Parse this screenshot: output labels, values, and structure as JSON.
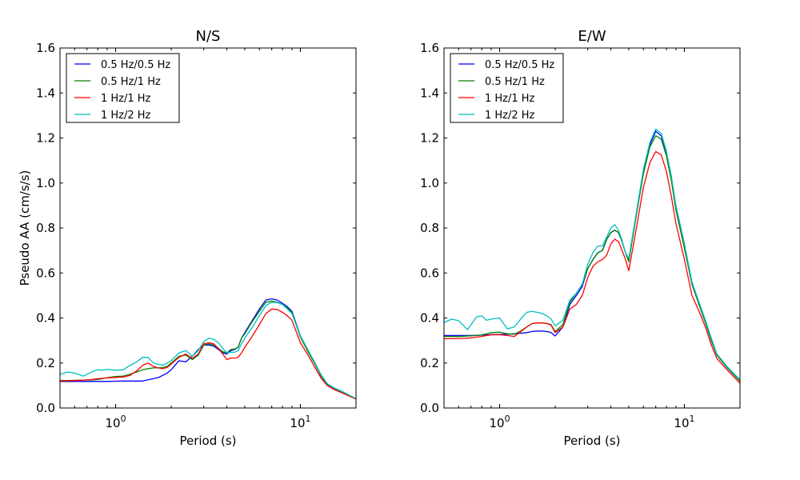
{
  "chart_data": [
    {
      "type": "line",
      "title": "N/S",
      "xlabel": "Period (s)",
      "ylabel": "Pseudo AA (cm/s/s)",
      "xscale": "log",
      "xlim": [
        0.5,
        20
      ],
      "ylim": [
        0.0,
        1.6
      ],
      "yticks": [
        "0.0",
        "0.2",
        "0.4",
        "0.6",
        "0.8",
        "1.0",
        "1.2",
        "1.4",
        "1.6"
      ],
      "xticks": [
        {
          "base": "10",
          "exp": "0",
          "value": 1
        },
        {
          "base": "10",
          "exp": "1",
          "value": 10
        }
      ],
      "legend_position": "upper-left",
      "x": [
        0.5,
        0.55,
        0.6,
        0.67,
        0.75,
        0.8,
        0.85,
        0.9,
        1.0,
        1.1,
        1.2,
        1.3,
        1.4,
        1.5,
        1.6,
        1.7,
        1.8,
        1.9,
        2.0,
        2.2,
        2.4,
        2.6,
        2.8,
        3.0,
        3.2,
        3.4,
        3.6,
        3.8,
        4.0,
        4.2,
        4.4,
        4.6,
        4.8,
        5.0,
        5.5,
        6.0,
        6.5,
        7.0,
        7.5,
        8.0,
        8.5,
        9.0,
        10.0,
        11.0,
        12.0,
        13.0,
        14.0,
        15.0,
        17.0,
        20.0
      ],
      "series": [
        {
          "name": "0.5 Hz/0.5 Hz",
          "color": "#0000ff",
          "values": [
            0.118,
            0.118,
            0.118,
            0.118,
            0.118,
            0.118,
            0.118,
            0.118,
            0.119,
            0.12,
            0.12,
            0.12,
            0.12,
            0.125,
            0.13,
            0.135,
            0.145,
            0.155,
            0.17,
            0.21,
            0.205,
            0.23,
            0.26,
            0.28,
            0.28,
            0.275,
            0.26,
            0.245,
            0.24,
            0.255,
            0.26,
            0.27,
            0.31,
            0.335,
            0.39,
            0.44,
            0.48,
            0.485,
            0.48,
            0.465,
            0.45,
            0.43,
            0.32,
            0.255,
            0.2,
            0.14,
            0.105,
            0.09,
            0.07,
            0.04
          ]
        },
        {
          "name": "0.5 Hz/1 Hz",
          "color": "#008000",
          "values": [
            0.122,
            0.122,
            0.123,
            0.124,
            0.125,
            0.127,
            0.13,
            0.135,
            0.14,
            0.142,
            0.15,
            0.16,
            0.17,
            0.175,
            0.178,
            0.178,
            0.18,
            0.185,
            0.2,
            0.23,
            0.235,
            0.215,
            0.235,
            0.28,
            0.285,
            0.28,
            0.265,
            0.25,
            0.245,
            0.26,
            0.262,
            0.27,
            0.31,
            0.33,
            0.385,
            0.43,
            0.47,
            0.475,
            0.47,
            0.46,
            0.445,
            0.425,
            0.315,
            0.25,
            0.195,
            0.14,
            0.105,
            0.09,
            0.07,
            0.04
          ]
        },
        {
          "name": "1 Hz/1 Hz",
          "color": "#ff0000",
          "values": [
            0.12,
            0.121,
            0.122,
            0.124,
            0.127,
            0.13,
            0.132,
            0.134,
            0.136,
            0.138,
            0.145,
            0.165,
            0.19,
            0.2,
            0.185,
            0.178,
            0.175,
            0.18,
            0.195,
            0.225,
            0.24,
            0.22,
            0.24,
            0.285,
            0.29,
            0.285,
            0.265,
            0.24,
            0.215,
            0.222,
            0.222,
            0.225,
            0.245,
            0.27,
            0.32,
            0.37,
            0.42,
            0.44,
            0.438,
            0.425,
            0.41,
            0.39,
            0.29,
            0.235,
            0.18,
            0.13,
            0.1,
            0.085,
            0.065,
            0.04
          ]
        },
        {
          "name": "1 Hz/2 Hz",
          "color": "#00bfbf",
          "values": [
            0.15,
            0.16,
            0.155,
            0.142,
            0.162,
            0.17,
            0.168,
            0.172,
            0.168,
            0.17,
            0.19,
            0.205,
            0.225,
            0.225,
            0.2,
            0.195,
            0.19,
            0.2,
            0.21,
            0.245,
            0.255,
            0.23,
            0.255,
            0.295,
            0.31,
            0.305,
            0.29,
            0.265,
            0.245,
            0.248,
            0.248,
            0.255,
            0.285,
            0.31,
            0.36,
            0.41,
            0.455,
            0.47,
            0.468,
            0.46,
            0.44,
            0.42,
            0.32,
            0.258,
            0.2,
            0.145,
            0.108,
            0.092,
            0.072,
            0.042
          ]
        }
      ]
    },
    {
      "type": "line",
      "title": "E/W",
      "xlabel": "Period (s)",
      "ylabel": "",
      "xscale": "log",
      "xlim": [
        0.5,
        20
      ],
      "ylim": [
        0.0,
        1.6
      ],
      "yticks": [
        "0.0",
        "0.2",
        "0.4",
        "0.6",
        "0.8",
        "1.0",
        "1.2",
        "1.4",
        "1.6"
      ],
      "xticks": [
        {
          "base": "10",
          "exp": "0",
          "value": 1
        },
        {
          "base": "10",
          "exp": "1",
          "value": 10
        }
      ],
      "legend_position": "upper-left",
      "x": [
        0.5,
        0.55,
        0.6,
        0.67,
        0.75,
        0.8,
        0.85,
        0.9,
        1.0,
        1.1,
        1.2,
        1.3,
        1.4,
        1.5,
        1.6,
        1.7,
        1.8,
        1.9,
        2.0,
        2.2,
        2.4,
        2.6,
        2.8,
        3.0,
        3.2,
        3.4,
        3.6,
        3.8,
        4.0,
        4.2,
        4.4,
        4.6,
        4.8,
        5.0,
        5.5,
        6.0,
        6.5,
        7.0,
        7.5,
        8.0,
        8.5,
        9.0,
        10.0,
        11.0,
        12.0,
        13.0,
        14.0,
        15.0,
        17.0,
        20.0
      ],
      "series": [
        {
          "name": "0.5 Hz/0.5 Hz",
          "color": "#0000ff",
          "values": [
            0.322,
            0.322,
            0.322,
            0.322,
            0.323,
            0.324,
            0.325,
            0.326,
            0.327,
            0.328,
            0.33,
            0.332,
            0.335,
            0.34,
            0.342,
            0.342,
            0.34,
            0.335,
            0.32,
            0.36,
            0.46,
            0.5,
            0.54,
            0.62,
            0.66,
            0.69,
            0.7,
            0.75,
            0.78,
            0.79,
            0.78,
            0.74,
            0.69,
            0.655,
            0.86,
            1.05,
            1.17,
            1.23,
            1.21,
            1.13,
            1.02,
            0.89,
            0.72,
            0.55,
            0.46,
            0.38,
            0.3,
            0.235,
            0.18,
            0.12
          ]
        },
        {
          "name": "0.5 Hz/1 Hz",
          "color": "#008000",
          "values": [
            0.318,
            0.318,
            0.318,
            0.32,
            0.322,
            0.325,
            0.33,
            0.335,
            0.337,
            0.33,
            0.328,
            0.342,
            0.36,
            0.375,
            0.378,
            0.378,
            0.376,
            0.37,
            0.34,
            0.37,
            0.47,
            0.51,
            0.55,
            0.62,
            0.66,
            0.69,
            0.7,
            0.75,
            0.78,
            0.79,
            0.78,
            0.74,
            0.69,
            0.65,
            0.86,
            1.04,
            1.16,
            1.21,
            1.195,
            1.12,
            1.01,
            0.88,
            0.71,
            0.55,
            0.46,
            0.38,
            0.3,
            0.235,
            0.18,
            0.12
          ]
        },
        {
          "name": "1 Hz/1 Hz",
          "color": "#ff0000",
          "values": [
            0.308,
            0.308,
            0.309,
            0.31,
            0.315,
            0.318,
            0.322,
            0.325,
            0.326,
            0.322,
            0.318,
            0.338,
            0.36,
            0.375,
            0.378,
            0.378,
            0.376,
            0.368,
            0.335,
            0.36,
            0.44,
            0.46,
            0.5,
            0.58,
            0.63,
            0.65,
            0.66,
            0.68,
            0.73,
            0.75,
            0.74,
            0.7,
            0.66,
            0.61,
            0.8,
            0.98,
            1.09,
            1.14,
            1.125,
            1.05,
            0.94,
            0.82,
            0.66,
            0.5,
            0.43,
            0.36,
            0.28,
            0.22,
            0.17,
            0.11
          ]
        },
        {
          "name": "1 Hz/2 Hz",
          "color": "#00bfbf",
          "values": [
            0.38,
            0.395,
            0.388,
            0.348,
            0.405,
            0.41,
            0.39,
            0.395,
            0.4,
            0.352,
            0.36,
            0.395,
            0.425,
            0.43,
            0.425,
            0.42,
            0.41,
            0.395,
            0.365,
            0.39,
            0.48,
            0.51,
            0.55,
            0.64,
            0.69,
            0.72,
            0.72,
            0.76,
            0.8,
            0.815,
            0.79,
            0.745,
            0.69,
            0.665,
            0.87,
            1.06,
            1.18,
            1.24,
            1.22,
            1.14,
            1.03,
            0.9,
            0.73,
            0.56,
            0.47,
            0.39,
            0.31,
            0.24,
            0.185,
            0.125
          ]
        }
      ]
    }
  ]
}
